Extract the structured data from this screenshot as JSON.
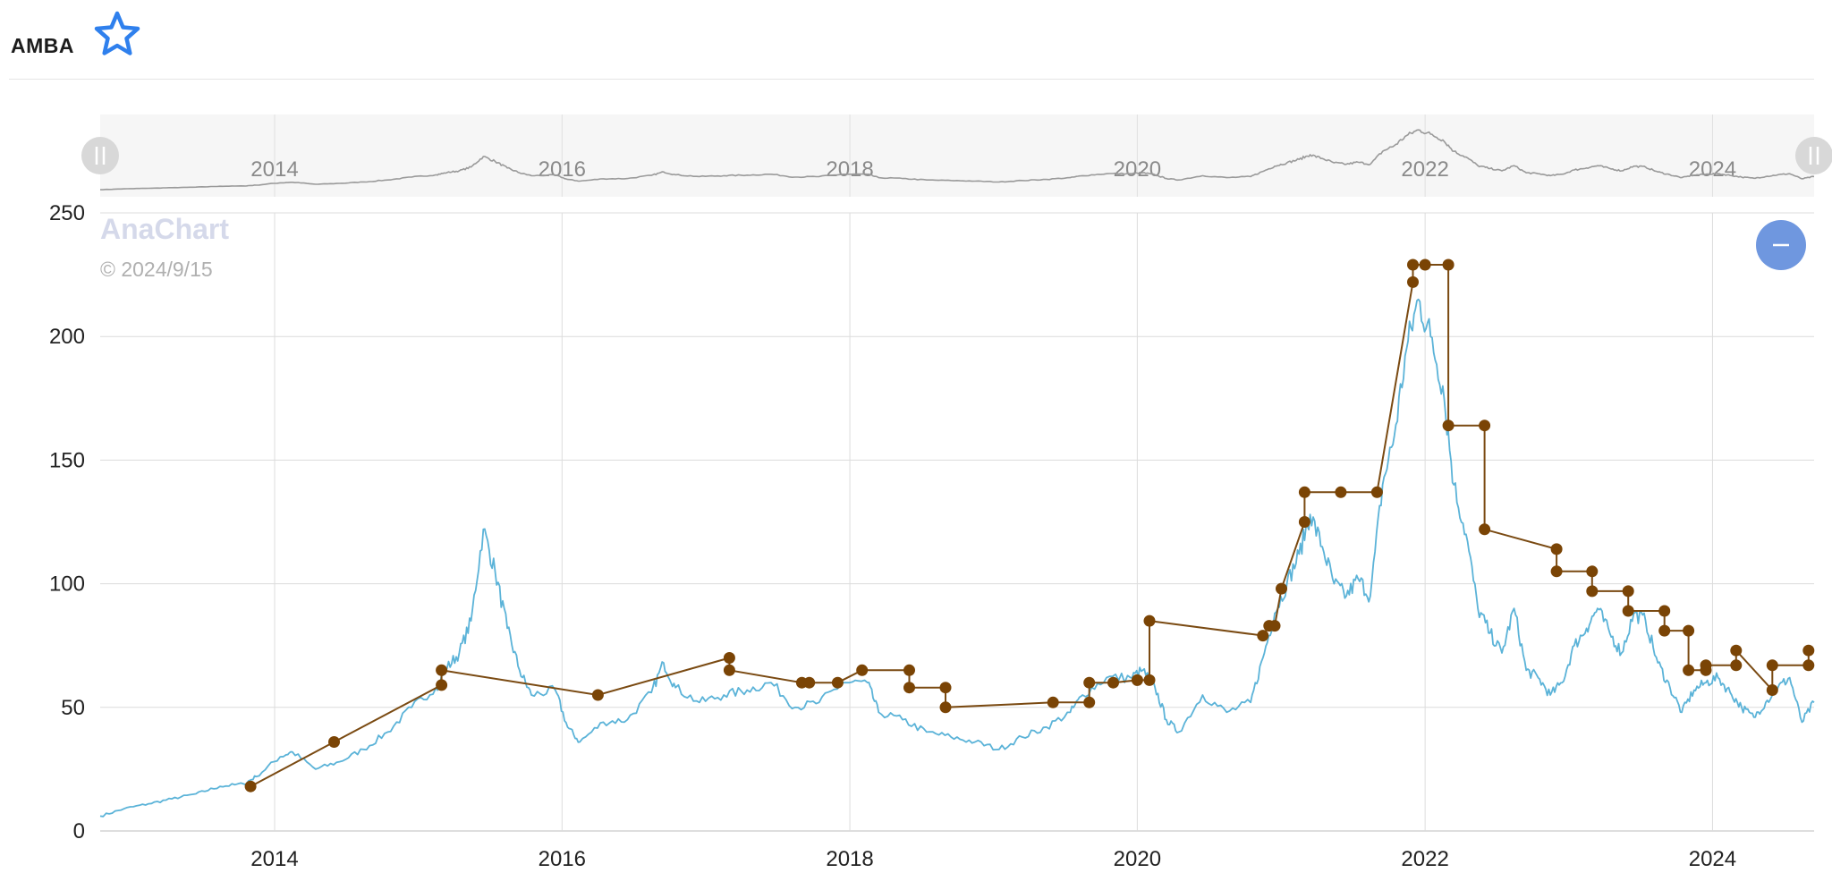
{
  "header": {
    "ticker": "AMBA",
    "favorite_icon": "star-outline-icon"
  },
  "watermark": {
    "brand": "AnaChart",
    "date": "© 2024/9/15"
  },
  "controls": {
    "zoom_out_icon": "minus-icon",
    "left_handle_icon": "drag-handle-icon",
    "right_handle_icon": "drag-handle-icon"
  },
  "colors": {
    "price_line": "#5bb3d8",
    "target_line": "#7a4a12",
    "target_marker": "#7a4405",
    "navigator_line": "#9a9a9a",
    "zoom_button": "#6f97df",
    "star": "#2f80ed"
  },
  "chart_data": {
    "type": "line",
    "xlim": [
      "2012-10-15",
      "2024-09-15"
    ],
    "ylim": [
      0,
      250
    ],
    "y_ticks": [
      0,
      50,
      100,
      150,
      200,
      250
    ],
    "x_ticks": [
      "2014",
      "2016",
      "2018",
      "2020",
      "2022",
      "2024"
    ],
    "grid": true,
    "navigator_x_ticks": [
      "2014",
      "2016",
      "2018",
      "2020",
      "2022",
      "2024"
    ],
    "price_series": [
      [
        "2012-10",
        6
      ],
      [
        "2012-12",
        9
      ],
      [
        "2013-02",
        11
      ],
      [
        "2013-04",
        13
      ],
      [
        "2013-06",
        15
      ],
      [
        "2013-08",
        18
      ],
      [
        "2013-10",
        19
      ],
      [
        "2013-11",
        22
      ],
      [
        "2014-01",
        30
      ],
      [
        "2014-02",
        32
      ],
      [
        "2014-04",
        25
      ],
      [
        "2014-06",
        28
      ],
      [
        "2014-08",
        33
      ],
      [
        "2014-10",
        40
      ],
      [
        "2014-12",
        50
      ],
      [
        "2015-02",
        58
      ],
      [
        "2015-03",
        66
      ],
      [
        "2015-04",
        72
      ],
      [
        "2015-05",
        85
      ],
      [
        "2015-06",
        122
      ],
      [
        "2015-07",
        105
      ],
      [
        "2015-08",
        82
      ],
      [
        "2015-09",
        65
      ],
      [
        "2015-10",
        55
      ],
      [
        "2015-12",
        57
      ],
      [
        "2016-01",
        42
      ],
      [
        "2016-02",
        36
      ],
      [
        "2016-04",
        44
      ],
      [
        "2016-06",
        45
      ],
      [
        "2016-08",
        56
      ],
      [
        "2016-09",
        68
      ],
      [
        "2016-10",
        58
      ],
      [
        "2016-12",
        52
      ],
      [
        "2017-02",
        55
      ],
      [
        "2017-04",
        57
      ],
      [
        "2017-06",
        60
      ],
      [
        "2017-08",
        50
      ],
      [
        "2017-10",
        52
      ],
      [
        "2017-12",
        60
      ],
      [
        "2018-02",
        60
      ],
      [
        "2018-03",
        48
      ],
      [
        "2018-05",
        45
      ],
      [
        "2018-07",
        40
      ],
      [
        "2018-09",
        38
      ],
      [
        "2018-11",
        36
      ],
      [
        "2019-01",
        33
      ],
      [
        "2019-03",
        38
      ],
      [
        "2019-05",
        42
      ],
      [
        "2019-07",
        48
      ],
      [
        "2019-08",
        55
      ],
      [
        "2019-10",
        62
      ],
      [
        "2019-12",
        62
      ],
      [
        "2020-01",
        65
      ],
      [
        "2020-02",
        58
      ],
      [
        "2020-03",
        45
      ],
      [
        "2020-04",
        40
      ],
      [
        "2020-06",
        55
      ],
      [
        "2020-08",
        48
      ],
      [
        "2020-10",
        52
      ],
      [
        "2020-11",
        70
      ],
      [
        "2020-12",
        88
      ],
      [
        "2021-01",
        100
      ],
      [
        "2021-02",
        112
      ],
      [
        "2021-03",
        128
      ],
      [
        "2021-04",
        115
      ],
      [
        "2021-05",
        100
      ],
      [
        "2021-06",
        95
      ],
      [
        "2021-07",
        102
      ],
      [
        "2021-08",
        95
      ],
      [
        "2021-09",
        140
      ],
      [
        "2021-10",
        160
      ],
      [
        "2021-11",
        195
      ],
      [
        "2021-12",
        215
      ],
      [
        "2022-01",
        200
      ],
      [
        "2022-02",
        180
      ],
      [
        "2022-03",
        140
      ],
      [
        "2022-04",
        120
      ],
      [
        "2022-05",
        90
      ],
      [
        "2022-06",
        80
      ],
      [
        "2022-07",
        72
      ],
      [
        "2022-08",
        90
      ],
      [
        "2022-09",
        65
      ],
      [
        "2022-10",
        62
      ],
      [
        "2022-11",
        55
      ],
      [
        "2022-12",
        60
      ],
      [
        "2023-01",
        75
      ],
      [
        "2023-02",
        82
      ],
      [
        "2023-03",
        90
      ],
      [
        "2023-04",
        80
      ],
      [
        "2023-05",
        72
      ],
      [
        "2023-06",
        88
      ],
      [
        "2023-07",
        85
      ],
      [
        "2023-08",
        68
      ],
      [
        "2023-09",
        58
      ],
      [
        "2023-10",
        48
      ],
      [
        "2023-11",
        57
      ],
      [
        "2023-12",
        60
      ],
      [
        "2024-01",
        62
      ],
      [
        "2024-02",
        56
      ],
      [
        "2024-03",
        50
      ],
      [
        "2024-04",
        46
      ],
      [
        "2024-05",
        52
      ],
      [
        "2024-06",
        58
      ],
      [
        "2024-07",
        62
      ],
      [
        "2024-08",
        44
      ],
      [
        "2024-09",
        52
      ]
    ],
    "target_series": [
      [
        "2013-11-01",
        18
      ],
      [
        "2014-06-01",
        36
      ],
      [
        "2015-03-01",
        59
      ],
      [
        "2015-03-01",
        65
      ],
      [
        "2016-04-01",
        55
      ],
      [
        "2017-03-01",
        70
      ],
      [
        "2017-03-01",
        65
      ],
      [
        "2017-09-01",
        60
      ],
      [
        "2017-09-20",
        60
      ],
      [
        "2017-12-01",
        60
      ],
      [
        "2018-02-01",
        65
      ],
      [
        "2018-06-01",
        65
      ],
      [
        "2018-06-01",
        58
      ],
      [
        "2018-09-01",
        58
      ],
      [
        "2018-09-01",
        50
      ],
      [
        "2019-06-01",
        52
      ],
      [
        "2019-09-01",
        52
      ],
      [
        "2019-09-01",
        60
      ],
      [
        "2019-11-01",
        60
      ],
      [
        "2020-01-01",
        61
      ],
      [
        "2020-02-01",
        61
      ],
      [
        "2020-02-01",
        85
      ],
      [
        "2020-11-15",
        79
      ],
      [
        "2020-12-01",
        83
      ],
      [
        "2020-12-15",
        83
      ],
      [
        "2021-01-01",
        98
      ],
      [
        "2021-03-01",
        125
      ],
      [
        "2021-03-01",
        137
      ],
      [
        "2021-06-01",
        137
      ],
      [
        "2021-09-01",
        137
      ],
      [
        "2021-12-01",
        222
      ],
      [
        "2021-12-01",
        229
      ],
      [
        "2022-01-01",
        229
      ],
      [
        "2022-03-01",
        229
      ],
      [
        "2022-03-01",
        164
      ],
      [
        "2022-06-01",
        164
      ],
      [
        "2022-06-01",
        122
      ],
      [
        "2022-12-01",
        114
      ],
      [
        "2022-12-01",
        105
      ],
      [
        "2023-03-01",
        105
      ],
      [
        "2023-03-01",
        97
      ],
      [
        "2023-06-01",
        97
      ],
      [
        "2023-06-01",
        89
      ],
      [
        "2023-09-01",
        89
      ],
      [
        "2023-09-01",
        81
      ],
      [
        "2023-11-01",
        81
      ],
      [
        "2023-11-01",
        65
      ],
      [
        "2023-12-15",
        65
      ],
      [
        "2023-12-15",
        67
      ],
      [
        "2024-03-01",
        67
      ],
      [
        "2024-03-01",
        73
      ],
      [
        "2024-06-01",
        57
      ],
      [
        "2024-06-01",
        67
      ],
      [
        "2024-09-01",
        67
      ],
      [
        "2024-09-01",
        73
      ]
    ]
  }
}
